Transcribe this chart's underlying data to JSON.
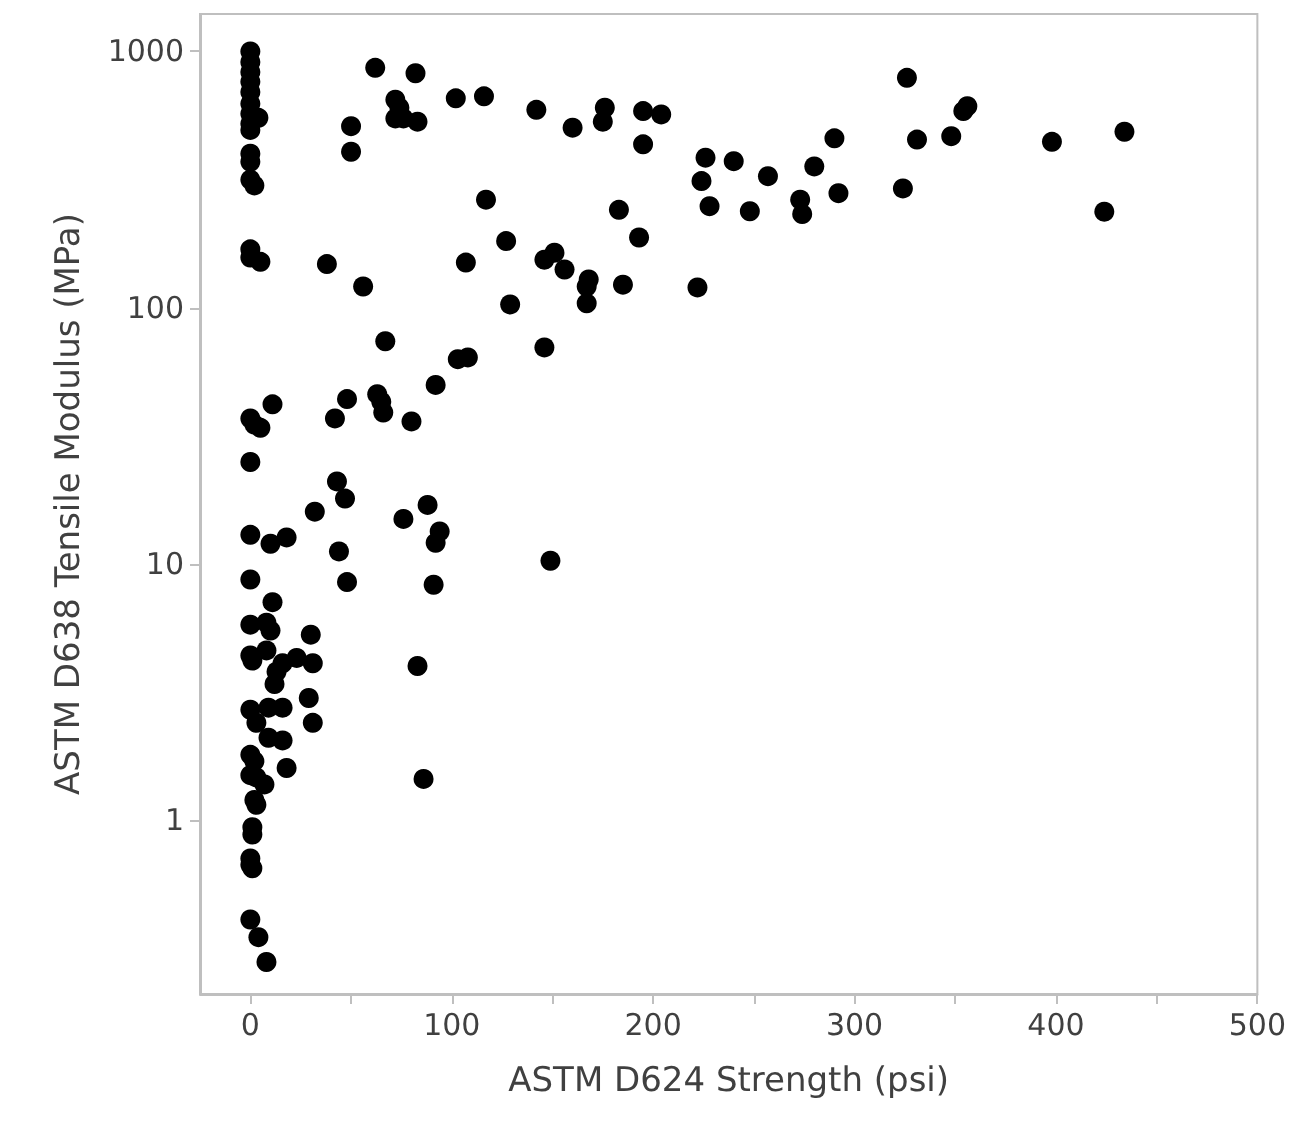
{
  "chart_data": {
    "type": "scatter",
    "xlabel": "ASTM D624 Strength (psi)",
    "ylabel": "ASTM D638 Tensile Modulus (MPa)",
    "log": "y",
    "grid": false,
    "marker": "circle",
    "xlim": [
      -25,
      500
    ],
    "ylim": [
      0.21,
      1400
    ],
    "xticks": [
      0,
      {
        "value": 50,
        "label": null
      },
      100,
      {
        "value": 150,
        "label": null
      },
      200,
      {
        "value": 250,
        "label": null
      },
      300,
      {
        "value": 350,
        "label": null
      },
      400,
      {
        "value": 450,
        "label": null
      },
      500
    ],
    "yticks": [
      1,
      10,
      100,
      1000
    ],
    "series": [
      {
        "color": "#000000",
        "x": [
          0,
          0,
          0,
          0,
          0,
          0,
          0,
          0,
          4,
          0,
          0,
          0,
          0,
          2,
          0,
          0,
          5,
          62,
          82,
          72,
          74,
          72,
          76,
          83,
          50,
          50,
          102,
          116,
          142,
          160,
          117,
          127,
          107,
          146,
          151,
          156,
          38,
          56,
          129,
          167,
          167,
          67,
          146,
          103,
          108,
          92,
          11,
          48,
          42,
          63,
          65,
          66,
          80,
          0,
          2,
          5,
          0,
          43,
          47,
          32,
          88,
          76,
          0,
          10,
          18,
          44,
          94,
          92,
          149,
          0,
          48,
          91,
          11,
          0,
          8,
          10,
          30,
          0,
          1,
          8,
          16,
          23,
          31,
          13,
          12,
          29,
          31,
          0,
          9,
          16,
          3,
          9,
          16,
          83,
          86,
          0,
          2,
          0,
          3,
          7,
          18,
          2,
          3,
          1,
          1,
          0,
          0,
          1,
          0,
          4,
          8,
          176,
          175,
          195,
          204,
          195,
          226,
          240,
          224,
          228,
          248,
          257,
          280,
          290,
          273,
          274,
          292,
          326,
          331,
          324,
          348,
          354,
          356,
          398,
          434,
          424,
          183,
          193,
          168,
          185,
          222
        ],
        "values": [
          1000,
          910,
          832,
          761,
          695,
          625,
          571,
          522,
          551,
          494,
          399,
          371,
          316,
          300,
          169,
          157,
          151,
          863,
          822,
          648,
          603,
          548,
          548,
          532,
          511,
          406,
          656,
          668,
          592,
          504,
          264,
          182,
          150,
          154,
          164,
          141,
          148,
          121,
          103,
          121,
          104,
          74,
          70,
          63,
          64,
          50,
          42,
          44,
          37,
          46,
          43,
          39,
          36,
          37,
          35,
          34,
          25,
          21,
          18,
          16,
          17,
          15,
          13,
          12,
          12.7,
          11.2,
          13.4,
          12.1,
          10.3,
          8.7,
          8.5,
          8.3,
          7.1,
          5.8,
          5.9,
          5.5,
          5.3,
          4.4,
          4.2,
          4.6,
          4.1,
          4.3,
          4.1,
          3.8,
          3.4,
          3.0,
          2.4,
          2.7,
          2.75,
          2.75,
          2.4,
          2.1,
          2.05,
          4.0,
          1.45,
          1.8,
          1.7,
          1.5,
          1.47,
          1.38,
          1.6,
          1.2,
          1.15,
          0.94,
          0.88,
          0.71,
          0.67,
          0.65,
          0.41,
          0.35,
          0.28,
          603,
          532,
          585,
          568,
          434,
          385,
          373,
          312,
          249,
          238,
          326,
          356,
          458,
          264,
          232,
          280,
          789,
          453,
          292,
          467,
          585,
          611,
          444,
          486,
          237,
          241,
          188,
          129,
          123,
          120
        ]
      }
    ]
  }
}
